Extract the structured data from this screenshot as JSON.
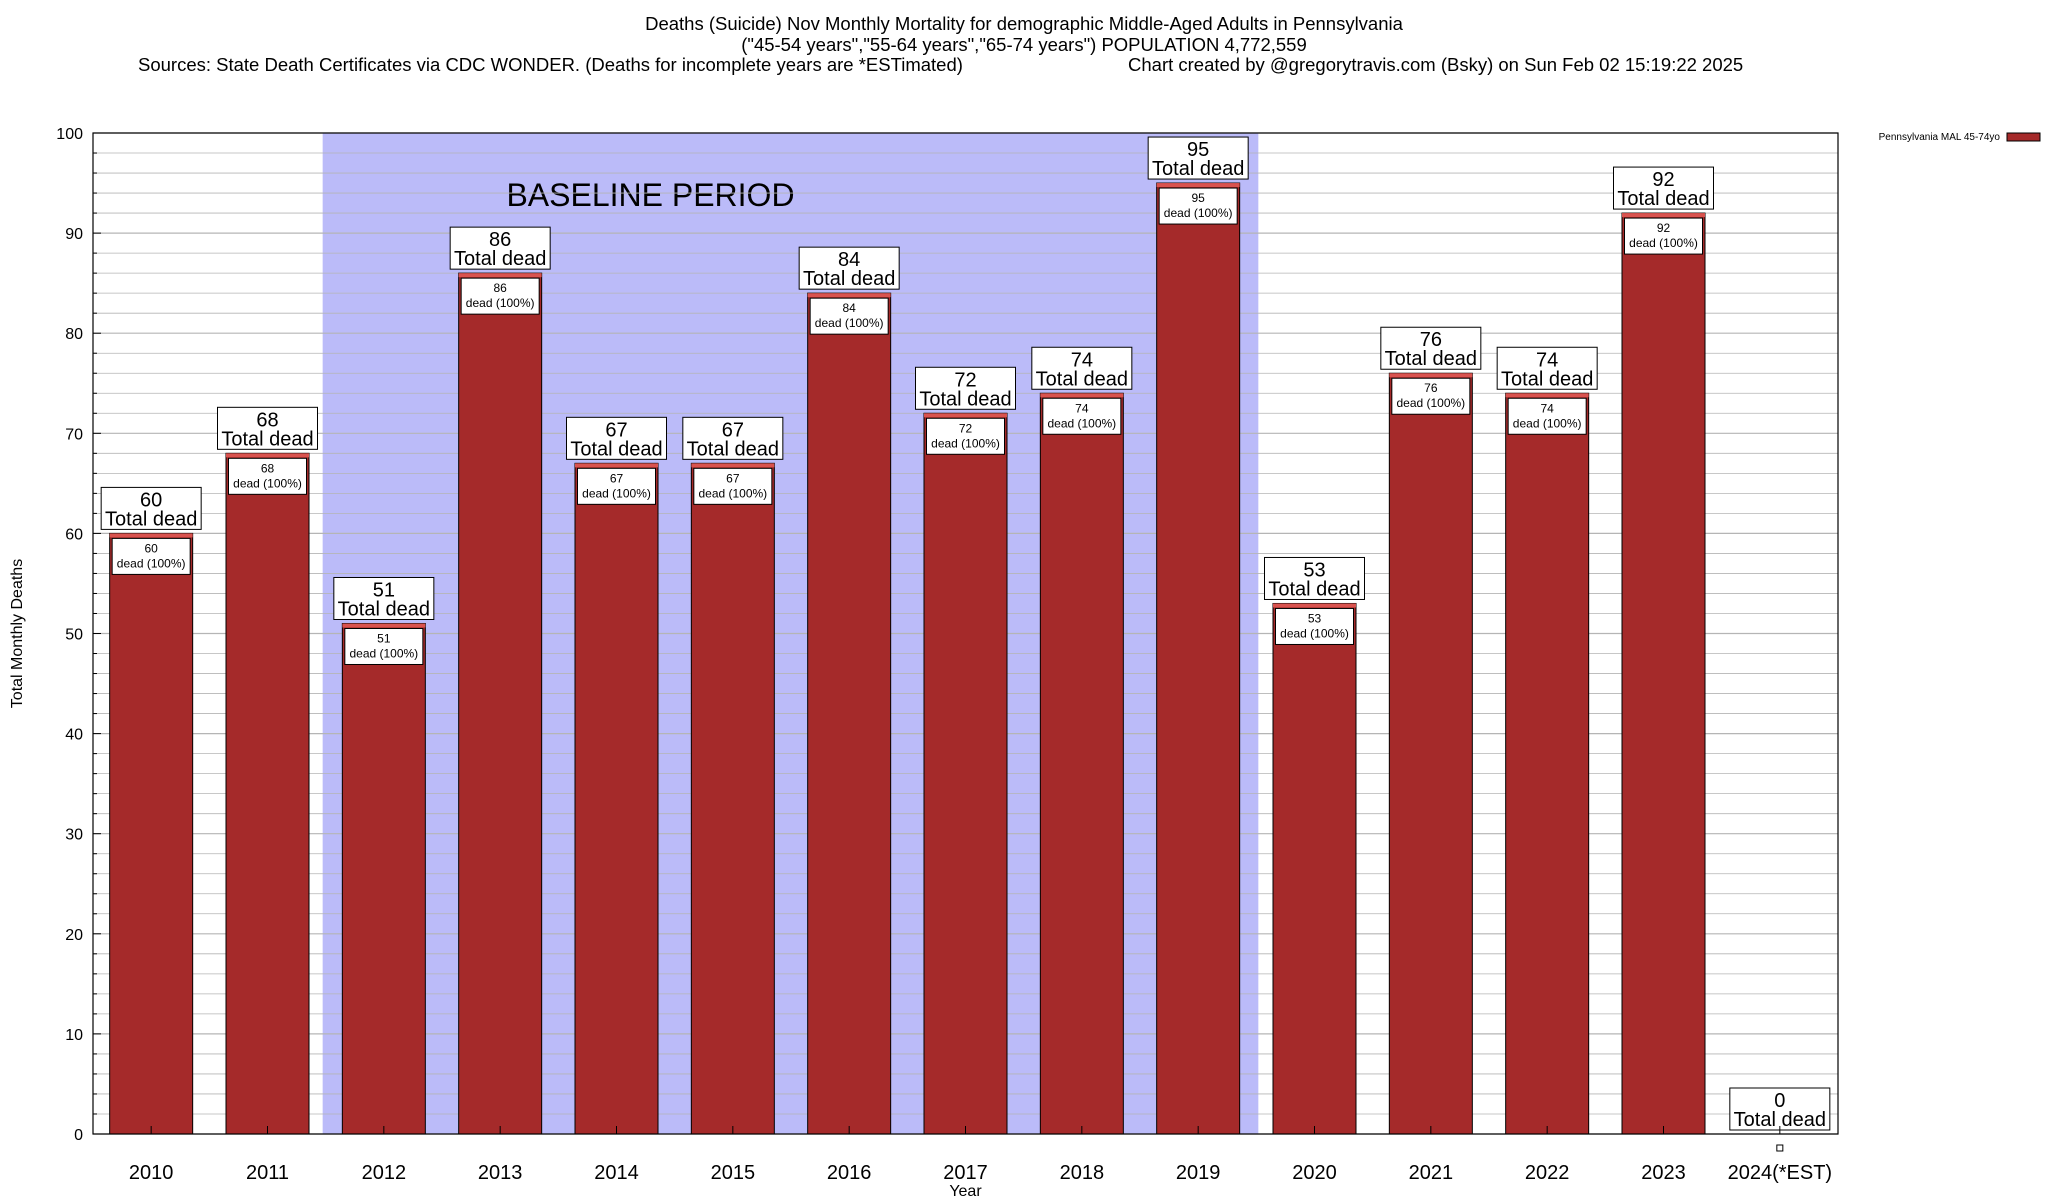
{
  "header": {
    "title": "Deaths (Suicide) Nov Monthly Mortality for demographic Middle-Aged Adults in Pennsylvania",
    "subtitle": "(\"45-54 years\",\"55-64 years\",\"65-74 years\") POPULATION 4,772,559",
    "sources": "Sources: State Death Certificates via CDC WONDER. (Deaths for incomplete years are *ESTimated)",
    "credit": "Chart created by @gregorytravis.com (Bsky) on Sun Feb 02 15:19:22 2025"
  },
  "chart_data": {
    "type": "bar",
    "xlabel": "Year",
    "ylabel": "Total Monthly Deaths",
    "ylim": [
      0,
      100
    ],
    "yticks": [
      0,
      10,
      20,
      30,
      40,
      50,
      60,
      70,
      80,
      90,
      100
    ],
    "grid": true,
    "legend_position": "top-right",
    "categories": [
      "2010",
      "2011",
      "2012",
      "2013",
      "2014",
      "2015",
      "2016",
      "2017",
      "2018",
      "2019",
      "2020",
      "2021",
      "2022",
      "2023",
      "2024(*EST)"
    ],
    "series": [
      {
        "name": "Pennsylvania MAL 45-74yo",
        "values": [
          60,
          68,
          51,
          86,
          67,
          67,
          84,
          72,
          74,
          95,
          53,
          76,
          74,
          92,
          0
        ]
      }
    ],
    "total_label": "Total dead",
    "segment_label": "dead (100%)",
    "baseline": {
      "label": "BASELINE PERIOD",
      "from": "2012",
      "to": "2019"
    },
    "colors": {
      "bar": "#a52a2a",
      "bar_cap": "#d9534f",
      "baseline_band": "#bbbbf9",
      "grid": "#b5b5b5"
    }
  }
}
